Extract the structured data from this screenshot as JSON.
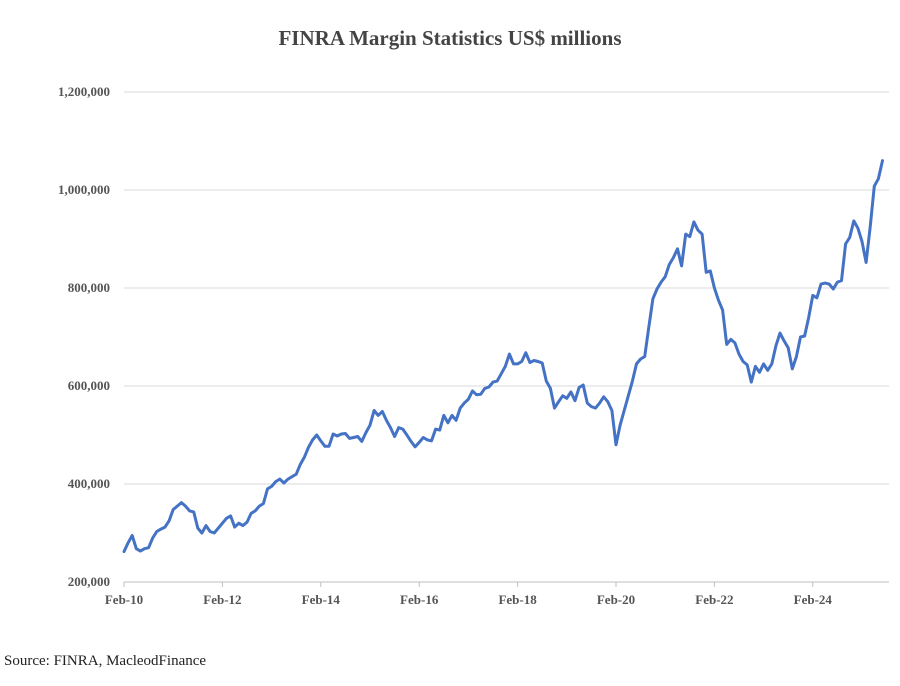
{
  "chart_data": {
    "type": "line",
    "title": "FINRA Margin Statistics US$ millions",
    "source": "Source: FINRA, MacleodFinance",
    "ylim": [
      200000,
      1200000
    ],
    "y_ticks": [
      200000,
      400000,
      600000,
      800000,
      1000000,
      1200000
    ],
    "y_tick_labels": [
      "200,000",
      "400,000",
      "600,000",
      "800,000",
      "1,000,000",
      "1,200,000"
    ],
    "x_tick_labels": [
      "Feb-10",
      "Feb-12",
      "Feb-14",
      "Feb-16",
      "Feb-18",
      "Feb-20",
      "Feb-22",
      "Feb-24"
    ],
    "x_tick_index": [
      0,
      24,
      48,
      72,
      96,
      120,
      144,
      168
    ],
    "grid": true,
    "line_color": "#4472C4",
    "series": [
      {
        "x_start": "Feb-10",
        "frequency": "monthly",
        "values": [
          262000,
          280000,
          295000,
          268000,
          263000,
          268000,
          270000,
          290000,
          303000,
          308000,
          312000,
          325000,
          348000,
          355000,
          362000,
          355000,
          345000,
          343000,
          310000,
          300000,
          315000,
          303000,
          300000,
          310000,
          320000,
          330000,
          335000,
          312000,
          320000,
          315000,
          322000,
          340000,
          345000,
          355000,
          360000,
          390000,
          395000,
          405000,
          410000,
          402000,
          410000,
          415000,
          420000,
          440000,
          455000,
          475000,
          490000,
          500000,
          488000,
          477000,
          477000,
          502000,
          498000,
          502000,
          503000,
          493000,
          495000,
          497000,
          487000,
          505000,
          520000,
          550000,
          540000,
          548000,
          530000,
          515000,
          497000,
          515000,
          512000,
          500000,
          487000,
          476000,
          485000,
          495000,
          490000,
          488000,
          512000,
          510000,
          540000,
          525000,
          540000,
          530000,
          555000,
          565000,
          573000,
          590000,
          582000,
          583000,
          595000,
          598000,
          608000,
          610000,
          625000,
          640000,
          665000,
          645000,
          645000,
          650000,
          668000,
          648000,
          652000,
          650000,
          647000,
          610000,
          595000,
          555000,
          568000,
          580000,
          575000,
          588000,
          570000,
          597000,
          602000,
          565000,
          558000,
          555000,
          565000,
          578000,
          568000,
          550000,
          480000,
          520000,
          550000,
          580000,
          610000,
          645000,
          655000,
          660000,
          720000,
          778000,
          798000,
          812000,
          823000,
          848000,
          862000,
          880000,
          845000,
          910000,
          905000,
          935000,
          918000,
          910000,
          832000,
          835000,
          800000,
          775000,
          755000,
          685000,
          695000,
          688000,
          665000,
          650000,
          643000,
          608000,
          640000,
          628000,
          645000,
          632000,
          645000,
          682000,
          708000,
          692000,
          678000,
          635000,
          660000,
          700000,
          702000,
          740000,
          785000,
          780000,
          808000,
          810000,
          808000,
          798000,
          812000,
          815000,
          890000,
          903000,
          937000,
          922000,
          895000,
          852000,
          925000,
          1008000,
          1023000,
          1060000
        ]
      }
    ]
  }
}
